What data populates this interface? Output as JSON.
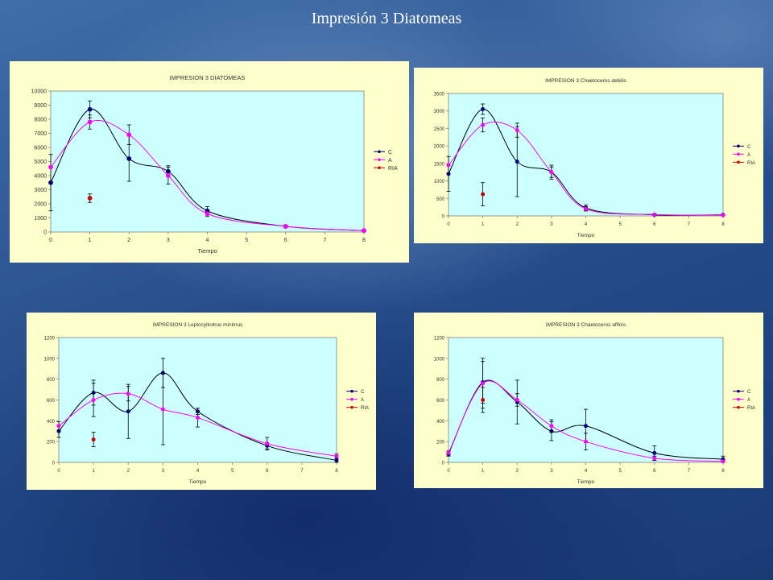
{
  "slide": {
    "title": "Impresión 3 Diatomeas"
  },
  "chart_data": [
    {
      "type": "line",
      "title": "IMPRESION 3 DIATOMEAS",
      "xlabel": "Tiempo",
      "ylabel": "",
      "xlim": [
        0,
        8
      ],
      "ylim": [
        0,
        10000
      ],
      "xticks": [
        0,
        1,
        2,
        3,
        4,
        5,
        6,
        7,
        8
      ],
      "yticks": [
        0,
        1000,
        2000,
        3000,
        4000,
        5000,
        6000,
        7000,
        8000,
        9000,
        10000
      ],
      "legend": "right",
      "grid": false,
      "plot_bg": "#ccffff",
      "series": [
        {
          "name": "C",
          "color": "#000080",
          "line_color": "#000000",
          "x": [
            0,
            1,
            2,
            3,
            4,
            6,
            8
          ],
          "y": [
            3500,
            8700,
            5200,
            4300,
            1500,
            400,
            100
          ],
          "err": [
            2000,
            600,
            1600,
            400,
            300,
            100,
            50
          ]
        },
        {
          "name": "A",
          "color": "#ff00ff",
          "line_color": "#ff00ff",
          "x": [
            0,
            1,
            2,
            3,
            4,
            6,
            8
          ],
          "y": [
            4600,
            7800,
            6900,
            4000,
            1300,
            400,
            100
          ],
          "err": [
            0,
            500,
            700,
            600,
            200,
            80,
            50
          ]
        },
        {
          "name": "RIA",
          "color": "#cc0000",
          "line_color": "none",
          "x": [
            1
          ],
          "y": [
            2400
          ],
          "err": [
            300
          ]
        }
      ]
    },
    {
      "type": "line",
      "title": "IMPRESION 3 Chaetoceros debilis",
      "xlabel": "Tiempo",
      "ylabel": "",
      "xlim": [
        0,
        8
      ],
      "ylim": [
        0,
        3500
      ],
      "xticks": [
        0,
        1,
        2,
        3,
        4,
        5,
        6,
        7,
        8
      ],
      "yticks": [
        0,
        500,
        1000,
        1500,
        2000,
        2500,
        3000,
        3500
      ],
      "legend": "right",
      "grid": false,
      "plot_bg": "#ccffff",
      "series": [
        {
          "name": "C",
          "color": "#000080",
          "line_color": "#000000",
          "x": [
            0,
            1,
            2,
            3,
            4,
            6,
            8
          ],
          "y": [
            1200,
            3050,
            1550,
            1250,
            230,
            30,
            30
          ],
          "err": [
            500,
            150,
            1000,
            200,
            80,
            20,
            20
          ]
        },
        {
          "name": "A",
          "color": "#ff00ff",
          "line_color": "#ff00ff",
          "x": [
            0,
            1,
            2,
            3,
            4,
            6,
            8
          ],
          "y": [
            1450,
            2600,
            2450,
            1250,
            200,
            40,
            20
          ],
          "err": [
            0,
            200,
            200,
            150,
            60,
            20,
            10
          ]
        },
        {
          "name": "RIA",
          "color": "#cc0000",
          "line_color": "none",
          "x": [
            1
          ],
          "y": [
            620
          ],
          "err": [
            330
          ]
        }
      ]
    },
    {
      "type": "line",
      "title": "IMPRESION 3 Leptocylindrus minimus",
      "xlabel": "Tiempo",
      "ylabel": "",
      "xlim": [
        0,
        8
      ],
      "ylim": [
        0,
        1200
      ],
      "xticks": [
        0,
        1,
        2,
        3,
        4,
        5,
        6,
        7,
        8
      ],
      "yticks": [
        0,
        200,
        400,
        600,
        800,
        1000,
        1200
      ],
      "legend": "right",
      "grid": false,
      "plot_bg": "#ccffff",
      "series": [
        {
          "name": "C",
          "color": "#000080",
          "line_color": "#000000",
          "x": [
            0,
            1,
            2,
            3,
            4,
            6,
            8
          ],
          "y": [
            300,
            670,
            490,
            860,
            490,
            160,
            20
          ],
          "err": [
            60,
            120,
            260,
            140,
            30,
            30,
            20
          ]
        },
        {
          "name": "A",
          "color": "#ff00ff",
          "line_color": "#ff00ff",
          "x": [
            0,
            1,
            2,
            3,
            4,
            6,
            8
          ],
          "y": [
            350,
            600,
            660,
            510,
            430,
            180,
            60
          ],
          "err": [
            40,
            160,
            70,
            340,
            90,
            60,
            20
          ]
        },
        {
          "name": "RIA",
          "color": "#cc0000",
          "line_color": "none",
          "x": [
            1
          ],
          "y": [
            220
          ],
          "err": [
            70
          ]
        }
      ]
    },
    {
      "type": "line",
      "title": "IMPRESION 3 Chaetoceros affinis",
      "xlabel": "Tiempo",
      "ylabel": "",
      "xlim": [
        0,
        8
      ],
      "ylim": [
        0,
        1200
      ],
      "xticks": [
        0,
        1,
        2,
        3,
        4,
        5,
        6,
        7,
        8
      ],
      "yticks": [
        0,
        200,
        400,
        600,
        800,
        1000,
        1200
      ],
      "legend": "right",
      "grid": false,
      "plot_bg": "#ccffff",
      "series": [
        {
          "name": "C",
          "color": "#000080",
          "line_color": "#000000",
          "x": [
            0,
            1,
            2,
            3,
            4,
            6,
            8
          ],
          "y": [
            80,
            770,
            580,
            300,
            350,
            90,
            30
          ],
          "err": [
            20,
            200,
            210,
            90,
            160,
            70,
            30
          ]
        },
        {
          "name": "A",
          "color": "#ff00ff",
          "line_color": "#ff00ff",
          "x": [
            0,
            1,
            2,
            3,
            4,
            6,
            8
          ],
          "y": [
            90,
            760,
            600,
            350,
            200,
            40,
            10
          ],
          "err": [
            20,
            240,
            60,
            60,
            80,
            20,
            10
          ]
        },
        {
          "name": "RIA",
          "color": "#cc0000",
          "line_color": "none",
          "x": [
            1
          ],
          "y": [
            600
          ],
          "err": [
            120
          ]
        }
      ]
    }
  ]
}
